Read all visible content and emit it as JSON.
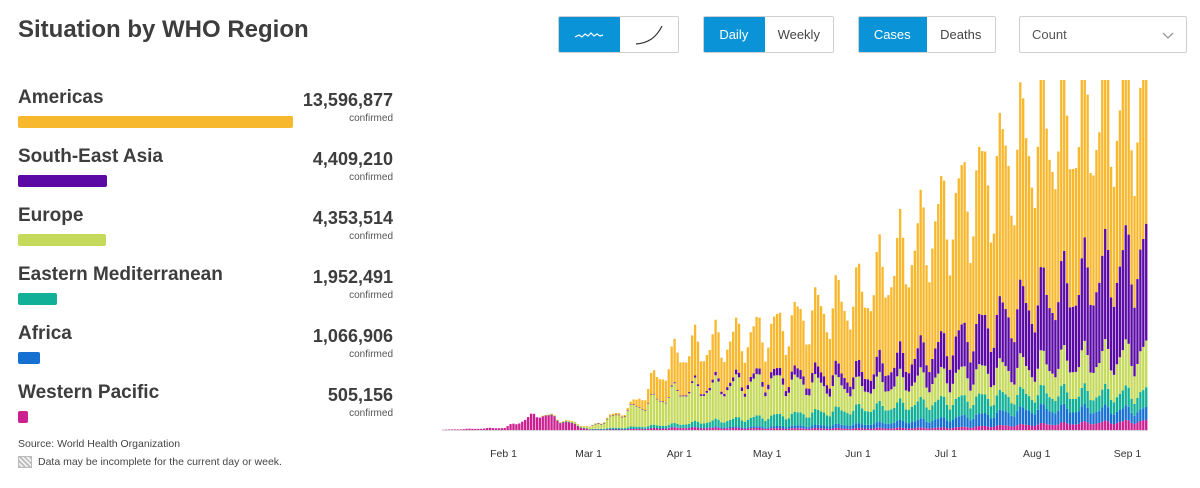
{
  "header": {
    "title": "Situation by WHO Region"
  },
  "controls": {
    "scale": {
      "linear_icon": "wave-icon",
      "log_icon": "curve-icon",
      "active": "linear"
    },
    "period": {
      "daily": "Daily",
      "weekly": "Weekly",
      "active": "daily"
    },
    "metric": {
      "cases": "Cases",
      "deaths": "Deaths",
      "active": "cases"
    },
    "select": {
      "value": "Count"
    }
  },
  "regions": [
    {
      "name": "Americas",
      "count": "13,596,877",
      "sub": "confirmed",
      "color": "#f8b82e",
      "value": 13596877
    },
    {
      "name": "South-East Asia",
      "count": "4,409,210",
      "sub": "confirmed",
      "color": "#5b0aa5",
      "value": 4409210
    },
    {
      "name": "Europe",
      "count": "4,353,514",
      "sub": "confirmed",
      "color": "#c5d95b",
      "value": 4353514
    },
    {
      "name": "Eastern Mediterranean",
      "count": "1,952,491",
      "sub": "confirmed",
      "color": "#12b197",
      "value": 1952491
    },
    {
      "name": "Africa",
      "count": "1,066,906",
      "sub": "confirmed",
      "color": "#1570d2",
      "value": 1066906
    },
    {
      "name": "Western Pacific",
      "count": "505,156",
      "sub": "confirmed",
      "color": "#cc2090",
      "value": 505156
    }
  ],
  "footer": {
    "source": "Source: World Health Organization",
    "note": "Data may be incomplete for the current day or week."
  },
  "chart_data": {
    "type": "bar",
    "stacked": true,
    "x_start": "2020-01-11",
    "x_end": "2020-09-07",
    "x_tick_labels": [
      "Feb 1",
      "Mar 1",
      "Apr 1",
      "May 1",
      "Jun 1",
      "Jul 1",
      "Aug 1",
      "Sep 1"
    ],
    "x_tick_dates": [
      "2020-02-01",
      "2020-03-01",
      "2020-04-01",
      "2020-05-01",
      "2020-06-01",
      "2020-07-01",
      "2020-08-01",
      "2020-09-01"
    ],
    "y_axis_shown": false,
    "ylim": [
      0,
      310000
    ],
    "series_order": [
      "Western Pacific",
      "Africa",
      "Eastern Mediterranean",
      "Europe",
      "South-East Asia",
      "Americas"
    ],
    "colors": [
      "#cc2090",
      "#1570d2",
      "#12b197",
      "#c5d95b",
      "#5b0aa5",
      "#f8b82e"
    ],
    "anchor_dates": [
      "2020-01-11",
      "2020-02-01",
      "2020-02-13",
      "2020-03-01",
      "2020-03-15",
      "2020-04-01",
      "2020-05-01",
      "2020-06-01",
      "2020-07-01",
      "2020-08-01",
      "2020-09-07"
    ],
    "series": [
      {
        "name": "Western Pacific",
        "values": [
          200,
          2000,
          15000,
          500,
          1000,
          2000,
          1500,
          1500,
          2000,
          5000,
          8000
        ]
      },
      {
        "name": "Africa",
        "values": [
          0,
          0,
          0,
          0,
          100,
          500,
          1500,
          3500,
          8000,
          14000,
          10000
        ]
      },
      {
        "name": "Eastern Mediterranean",
        "values": [
          0,
          0,
          0,
          200,
          1500,
          3000,
          9000,
          14000,
          16000,
          14000,
          15000
        ]
      },
      {
        "name": "Europe",
        "values": [
          0,
          0,
          0,
          2000,
          16000,
          30000,
          32000,
          20000,
          22000,
          25000,
          36000
        ]
      },
      {
        "name": "South-East Asia",
        "values": [
          0,
          0,
          0,
          0,
          200,
          800,
          5000,
          12000,
          28000,
          60000,
          90000
        ]
      },
      {
        "name": "Americas",
        "values": [
          0,
          0,
          0,
          100,
          2000,
          35000,
          40000,
          70000,
          120000,
          150000,
          140000
        ]
      }
    ]
  }
}
